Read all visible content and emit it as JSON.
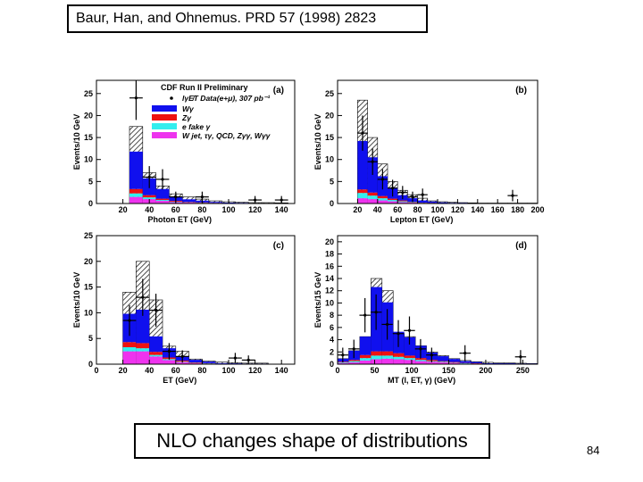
{
  "header": {
    "citation": "Baur, Han,  and Ohnemus. PRD 57 (1998) 2823"
  },
  "caption": "NLO changes shape of distributions",
  "page_number": "84",
  "colors": {
    "wgamma": "#1010ee",
    "zgamma": "#ee1111",
    "efake": "#33eeee",
    "other": "#ee33ee",
    "total_hatch": "#222222"
  },
  "legend": {
    "title": "CDF Run II Preliminary",
    "data_label": "lγE̸T Data(e+μ), 307 pb⁻¹",
    "items": [
      "Wγ",
      "Zγ",
      "e fake γ",
      "W jet, τγ, QCD, Zγγ, Wγγ"
    ]
  },
  "chart_data": [
    {
      "type": "bar",
      "panel_label": "(a)",
      "xlabel": "Photon ET (GeV)",
      "ylabel": "Events/10 GeV",
      "xlim": [
        0,
        150
      ],
      "ylim": [
        0,
        28
      ],
      "xticks": [
        20,
        40,
        60,
        80,
        100,
        120,
        140
      ],
      "yticks": [
        0,
        5,
        10,
        15,
        20,
        25
      ],
      "bin_edges": [
        25,
        35,
        45,
        55,
        65,
        75,
        85,
        95,
        105,
        115,
        125,
        135,
        145
      ],
      "stacks": {
        "other": [
          1.5,
          1.0,
          0.6,
          0.3,
          0.2,
          0.1,
          0.1,
          0.05,
          0.05,
          0.05,
          0.05,
          0.05
        ],
        "efake": [
          0.8,
          0.4,
          0.2,
          0.1,
          0.05,
          0.05,
          0.0,
          0.0,
          0.0,
          0.0,
          0.0,
          0.0
        ],
        "zgamma": [
          1.0,
          0.5,
          0.3,
          0.2,
          0.1,
          0.1,
          0.05,
          0.05,
          0.0,
          0.0,
          0.0,
          0.0
        ],
        "wgamma": [
          8.5,
          3.8,
          2.2,
          1.0,
          0.6,
          0.4,
          0.2,
          0.1,
          0.1,
          0.05,
          0.05,
          0.05
        ],
        "total": [
          17.5,
          7.0,
          4.0,
          2.2,
          1.5,
          1.0,
          0.6,
          0.4,
          0.3,
          0.2,
          0.2,
          0.15
        ]
      },
      "data_points": [
        {
          "x": 30,
          "y": 24.0,
          "yerr": 5.0,
          "xerr": 5
        },
        {
          "x": 40,
          "y": 6.0,
          "yerr": 2.5,
          "xerr": 5
        },
        {
          "x": 50,
          "y": 5.5,
          "yerr": 2.3,
          "xerr": 5
        },
        {
          "x": 60,
          "y": 1.5,
          "yerr": 1.2,
          "xerr": 5
        },
        {
          "x": 80,
          "y": 1.5,
          "yerr": 1.2,
          "xerr": 5
        },
        {
          "x": 120,
          "y": 0.8,
          "yerr": 0.9,
          "xerr": 5
        },
        {
          "x": 140,
          "y": 0.8,
          "yerr": 0.9,
          "xerr": 5
        }
      ]
    },
    {
      "type": "bar",
      "panel_label": "(b)",
      "xlabel": "Lepton ET (GeV)",
      "ylabel": "Events/10 GeV",
      "xlim": [
        0,
        200
      ],
      "ylim": [
        0,
        28
      ],
      "xticks": [
        20,
        40,
        60,
        80,
        100,
        120,
        140,
        160,
        180,
        200
      ],
      "yticks": [
        0,
        5,
        10,
        15,
        20,
        25
      ],
      "bin_edges": [
        20,
        30,
        40,
        50,
        60,
        70,
        80,
        90,
        100,
        110,
        120,
        130,
        140,
        150,
        160,
        170,
        180,
        190,
        200
      ],
      "stacks": {
        "other": [
          1.2,
          1.0,
          0.7,
          0.5,
          0.3,
          0.2,
          0.1,
          0.05,
          0.05,
          0.05,
          0.05,
          0.05,
          0.05,
          0.05,
          0.05,
          0.05,
          0.05,
          0.05
        ],
        "efake": [
          1.2,
          0.8,
          0.5,
          0.3,
          0.2,
          0.1,
          0.05,
          0.05,
          0.0,
          0.0,
          0.0,
          0.0,
          0.0,
          0.0,
          0.0,
          0.0,
          0.0,
          0.0
        ],
        "zgamma": [
          0.8,
          0.7,
          0.5,
          0.3,
          0.2,
          0.1,
          0.05,
          0.05,
          0.0,
          0.0,
          0.0,
          0.0,
          0.0,
          0.0,
          0.0,
          0.0,
          0.0,
          0.0
        ],
        "wgamma": [
          11.0,
          8.0,
          4.5,
          2.5,
          1.2,
          0.8,
          0.5,
          0.3,
          0.2,
          0.1,
          0.1,
          0.05,
          0.05,
          0.05,
          0.05,
          0.05,
          0.05,
          0.05
        ],
        "total": [
          23.5,
          15.0,
          9.0,
          5.0,
          3.0,
          2.0,
          1.2,
          0.6,
          0.4,
          0.3,
          0.2,
          0.15,
          0.1,
          0.1,
          0.1,
          0.1,
          0.1,
          0.1
        ]
      },
      "data_points": [
        {
          "x": 25,
          "y": 16.0,
          "yerr": 4.0,
          "xerr": 5
        },
        {
          "x": 35,
          "y": 9.5,
          "yerr": 3.0,
          "xerr": 5
        },
        {
          "x": 45,
          "y": 5.5,
          "yerr": 2.3,
          "xerr": 5
        },
        {
          "x": 55,
          "y": 3.5,
          "yerr": 1.9,
          "xerr": 5
        },
        {
          "x": 65,
          "y": 2.5,
          "yerr": 1.5,
          "xerr": 5
        },
        {
          "x": 75,
          "y": 1.5,
          "yerr": 1.2,
          "xerr": 5
        },
        {
          "x": 85,
          "y": 2.0,
          "yerr": 1.4,
          "xerr": 5
        },
        {
          "x": 175,
          "y": 1.8,
          "yerr": 1.3,
          "xerr": 5
        }
      ]
    },
    {
      "type": "bar",
      "panel_label": "(c)",
      "xlabel": "ET (GeV)",
      "ylabel": "Events/10 GeV",
      "xlim": [
        0,
        150
      ],
      "ylim": [
        0,
        25
      ],
      "xticks": [
        0,
        20,
        40,
        60,
        80,
        100,
        120,
        140
      ],
      "yticks": [
        0,
        5,
        10,
        15,
        20,
        25
      ],
      "bin_edges": [
        20,
        30,
        40,
        50,
        60,
        70,
        80,
        90,
        100,
        110,
        120,
        130
      ],
      "stacks": {
        "other": [
          2.5,
          2.5,
          1.5,
          0.8,
          0.4,
          0.2,
          0.1,
          0.05,
          0.05,
          0.05,
          0.05
        ],
        "efake": [
          0.8,
          0.6,
          0.3,
          0.2,
          0.1,
          0.05,
          0.05,
          0.0,
          0.0,
          0.0,
          0.0
        ],
        "zgamma": [
          1.0,
          1.0,
          0.6,
          0.3,
          0.2,
          0.1,
          0.05,
          0.05,
          0.0,
          0.0,
          0.0
        ],
        "wgamma": [
          5.5,
          6.5,
          3.0,
          1.8,
          0.8,
          0.5,
          0.3,
          0.1,
          0.1,
          0.05,
          0.05
        ],
        "total": [
          14.0,
          20.0,
          12.5,
          3.5,
          2.5,
          1.0,
          0.6,
          0.4,
          0.3,
          0.2,
          0.2
        ]
      },
      "data_points": [
        {
          "x": 25,
          "y": 8.5,
          "yerr": 3.0,
          "xerr": 5
        },
        {
          "x": 35,
          "y": 13.0,
          "yerr": 3.6,
          "xerr": 5
        },
        {
          "x": 45,
          "y": 10.5,
          "yerr": 3.2,
          "xerr": 5
        },
        {
          "x": 55,
          "y": 2.5,
          "yerr": 1.6,
          "xerr": 5
        },
        {
          "x": 65,
          "y": 1.5,
          "yerr": 1.2,
          "xerr": 5
        },
        {
          "x": 105,
          "y": 1.2,
          "yerr": 1.0,
          "xerr": 5
        },
        {
          "x": 115,
          "y": 0.8,
          "yerr": 0.9,
          "xerr": 5
        }
      ]
    },
    {
      "type": "bar",
      "panel_label": "(d)",
      "xlabel": "MT (l, ET, γ) (GeV)",
      "ylabel": "Events/15 GeV",
      "xlim": [
        0,
        270
      ],
      "ylim": [
        0,
        21
      ],
      "xticks": [
        0,
        50,
        100,
        150,
        200,
        250
      ],
      "yticks": [
        0,
        2,
        4,
        6,
        8,
        10,
        12,
        14,
        16,
        18,
        20
      ],
      "bin_edges": [
        0,
        15,
        30,
        45,
        60,
        75,
        90,
        105,
        120,
        135,
        150,
        165,
        180,
        195,
        210,
        225,
        240,
        255,
        270
      ],
      "stacks": {
        "other": [
          0.2,
          0.3,
          0.6,
          0.8,
          0.9,
          0.8,
          0.7,
          0.5,
          0.4,
          0.3,
          0.2,
          0.1,
          0.1,
          0.05,
          0.05,
          0.05,
          0.05,
          0.05
        ],
        "efake": [
          0.1,
          0.2,
          0.4,
          0.6,
          0.5,
          0.4,
          0.3,
          0.2,
          0.1,
          0.1,
          0.05,
          0.05,
          0.0,
          0.0,
          0.0,
          0.0,
          0.0,
          0.0
        ],
        "zgamma": [
          0.1,
          0.2,
          0.5,
          0.7,
          0.7,
          0.6,
          0.4,
          0.3,
          0.2,
          0.1,
          0.1,
          0.05,
          0.05,
          0.0,
          0.0,
          0.0,
          0.0,
          0.0
        ],
        "wgamma": [
          0.5,
          1.5,
          3.0,
          10.5,
          8.0,
          3.5,
          3.0,
          2.0,
          1.2,
          0.8,
          0.5,
          0.3,
          0.2,
          0.1,
          0.1,
          0.1,
          0.05,
          0.05
        ],
        "total": [
          0.9,
          2.2,
          4.5,
          14.0,
          12.0,
          5.0,
          4.5,
          3.0,
          2.0,
          1.4,
          0.9,
          0.6,
          0.4,
          0.3,
          0.2,
          0.2,
          0.15,
          0.1
        ]
      },
      "data_points": [
        {
          "x": 7,
          "y": 1.5,
          "yerr": 1.2,
          "xerr": 7.5
        },
        {
          "x": 22,
          "y": 2.5,
          "yerr": 1.5,
          "xerr": 7.5
        },
        {
          "x": 37,
          "y": 8.0,
          "yerr": 2.8,
          "xerr": 7.5
        },
        {
          "x": 52,
          "y": 8.5,
          "yerr": 2.9,
          "xerr": 7.5
        },
        {
          "x": 67,
          "y": 6.5,
          "yerr": 2.5,
          "xerr": 7.5
        },
        {
          "x": 82,
          "y": 5.0,
          "yerr": 2.2,
          "xerr": 7.5
        },
        {
          "x": 97,
          "y": 5.5,
          "yerr": 2.3,
          "xerr": 7.5
        },
        {
          "x": 112,
          "y": 2.5,
          "yerr": 1.6,
          "xerr": 7.5
        },
        {
          "x": 127,
          "y": 1.5,
          "yerr": 1.2,
          "xerr": 7.5
        },
        {
          "x": 172,
          "y": 1.8,
          "yerr": 1.3,
          "xerr": 7.5
        },
        {
          "x": 247,
          "y": 1.2,
          "yerr": 1.1,
          "xerr": 7.5
        }
      ]
    }
  ]
}
